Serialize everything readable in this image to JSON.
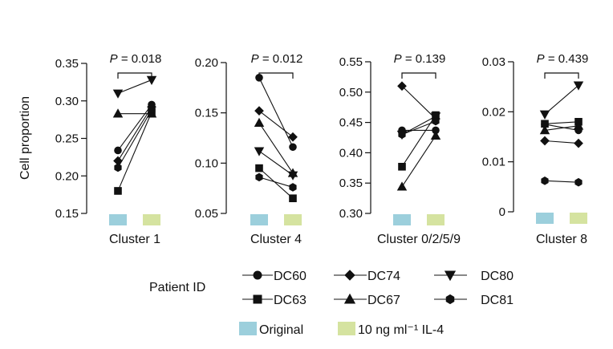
{
  "chart_data": {
    "type": "line",
    "ylabel": "Cell proportion",
    "conditions": [
      "Original",
      "10 ng ml⁻¹ IL-4"
    ],
    "condition_colors": [
      "#9ccfdc",
      "#d5e3a0"
    ],
    "legend": {
      "patient_title": "Patient ID",
      "patients": [
        {
          "id": "DC60",
          "marker": "circle"
        },
        {
          "id": "DC74",
          "marker": "diamond"
        },
        {
          "id": "DC80",
          "marker": "triangle-down"
        },
        {
          "id": "DC63",
          "marker": "square"
        },
        {
          "id": "DC67",
          "marker": "triangle-up"
        },
        {
          "id": "DC81",
          "marker": "hexagon"
        }
      ],
      "conditions": [
        {
          "label": "Original",
          "color": "#9ccfdc"
        },
        {
          "label": "10 ng ml⁻¹ IL-4",
          "color": "#d5e3a0"
        }
      ]
    },
    "panels": [
      {
        "name": "Cluster 1",
        "p_text": "= 0.018",
        "ylim": [
          0.15,
          0.35
        ],
        "yticks": [
          0.15,
          0.2,
          0.25,
          0.3,
          0.35
        ],
        "yticklabels": [
          "0.15",
          "0.20",
          "0.25",
          "0.30",
          "0.35"
        ],
        "series": [
          {
            "patient": "DC60",
            "values": [
              0.234,
              0.295
            ]
          },
          {
            "patient": "DC74",
            "values": [
              0.22,
              0.292
            ]
          },
          {
            "patient": "DC80",
            "values": [
              0.31,
              0.328
            ]
          },
          {
            "patient": "DC63",
            "values": [
              0.18,
              0.285
            ]
          },
          {
            "patient": "DC67",
            "values": [
              0.283,
              0.283
            ]
          },
          {
            "patient": "DC81",
            "values": [
              0.211,
              0.288
            ]
          }
        ]
      },
      {
        "name": "Cluster 4",
        "p_text": "= 0.012",
        "ylim": [
          0.05,
          0.2
        ],
        "yticks": [
          0.05,
          0.1,
          0.15,
          0.2
        ],
        "yticklabels": [
          "0.05",
          "0.10",
          "0.15",
          "0.20"
        ],
        "series": [
          {
            "patient": "DC60",
            "values": [
              0.185,
              0.116
            ]
          },
          {
            "patient": "DC74",
            "values": [
              0.152,
              0.126
            ]
          },
          {
            "patient": "DC80",
            "values": [
              0.112,
              0.088
            ]
          },
          {
            "patient": "DC63",
            "values": [
              0.095,
              0.065
            ]
          },
          {
            "patient": "DC67",
            "values": [
              0.14,
              0.09
            ]
          },
          {
            "patient": "DC81",
            "values": [
              0.086,
              0.076
            ]
          }
        ]
      },
      {
        "name": "Cluster 0/2/5/9",
        "p_text": "= 0.139",
        "ylim": [
          0.3,
          0.55
        ],
        "yticks": [
          0.3,
          0.35,
          0.4,
          0.45,
          0.5,
          0.55
        ],
        "yticklabels": [
          "0.30",
          "0.35",
          "0.40",
          "0.45",
          "0.50",
          "0.55"
        ],
        "series": [
          {
            "patient": "DC60",
            "values": [
              0.437,
              0.437
            ]
          },
          {
            "patient": "DC74",
            "values": [
              0.51,
              0.456
            ]
          },
          {
            "patient": "DC80",
            "values": [
              0.43,
              0.46
            ]
          },
          {
            "patient": "DC63",
            "values": [
              0.377,
              0.462
            ]
          },
          {
            "patient": "DC67",
            "values": [
              0.344,
              0.428
            ]
          },
          {
            "patient": "DC81",
            "values": [
              0.43,
              0.452
            ]
          }
        ]
      },
      {
        "name": "Cluster 8",
        "p_text": "= 0.439",
        "ylim": [
          0.0,
          0.03
        ],
        "yticks": [
          0.0,
          0.01,
          0.02,
          0.03
        ],
        "yticklabels": [
          "0",
          "0.01",
          "0.02",
          "0.03"
        ],
        "series": [
          {
            "patient": "DC60",
            "values": [
              0.0175,
              0.0163
            ]
          },
          {
            "patient": "DC74",
            "values": [
              0.0142,
              0.0137
            ]
          },
          {
            "patient": "DC80",
            "values": [
              0.0195,
              0.0253
            ]
          },
          {
            "patient": "DC63",
            "values": [
              0.0176,
              0.018
            ]
          },
          {
            "patient": "DC67",
            "values": [
              0.0163,
              0.0172
            ]
          },
          {
            "patient": "DC81",
            "values": [
              0.0062,
              0.0059
            ]
          }
        ]
      }
    ]
  }
}
